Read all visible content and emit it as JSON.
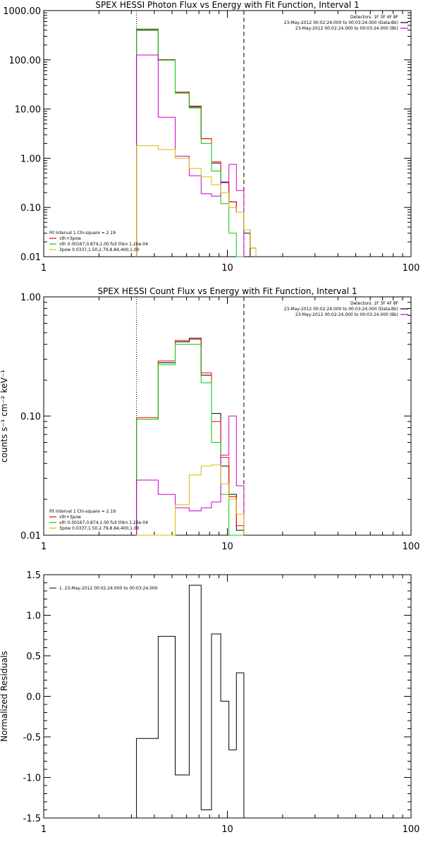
{
  "chart_data": [
    {
      "type": "line",
      "title": "SPEX HESSI Photon Flux vs Energy with Fit Function, Interval 1",
      "xlabel": "",
      "ylabel": "",
      "x_scale": "log",
      "y_scale": "log",
      "xlim": [
        1,
        100
      ],
      "ylim": [
        0.01,
        1000
      ],
      "x_ticks": [
        "1",
        "10",
        "100"
      ],
      "y_ticks": [
        "0.01",
        "0.10",
        "1.00",
        "10.00",
        "100.00",
        "1000.00"
      ],
      "legend_top": [
        "Detectors: 1F 3F 4F 8F",
        "23-May-2012 00:02:24.000 to 00:03:24.000 (Data-Bk)",
        "23-May-2012 00:02:24.000 to 00:03:24.000 (Bk)"
      ],
      "legend_top_colors": [
        "",
        "#000000",
        "#cc00cc"
      ],
      "legend_bottom": [
        "Fit Interval 1    Chi-square = 2.19",
        "vth+3pow",
        "vth 0.00167,0.874,1.00   full thkn 1.26e-04",
        "3pow 0.0337,1.50,2.79,8.84,400,1.00"
      ],
      "legend_bottom_colors": [
        "",
        "#ff0000",
        "#00cc00",
        "#ddbb00"
      ],
      "vlines": [
        {
          "x": 3.2,
          "style": "dotted"
        },
        {
          "x": 12.3,
          "style": "dashed"
        }
      ],
      "edges": [
        3.2,
        4.2,
        5.2,
        6.2,
        7.2,
        8.2,
        9.2,
        10.2,
        11.2,
        12.3,
        13.3,
        14.3
      ],
      "series": [
        {
          "color": "#000000",
          "values": [
            400,
            100,
            22,
            11,
            2.5,
            0.8,
            0.32,
            0.13,
            0.08,
            0.03,
            null
          ]
        },
        {
          "color": "#ff0000",
          "values": [
            420,
            100,
            22,
            11.5,
            2.5,
            0.85,
            0.33,
            0.13,
            0.08,
            0.035,
            0.015
          ]
        },
        {
          "color": "#00cc00",
          "values": [
            420,
            98,
            21,
            10.5,
            2.0,
            0.55,
            0.12,
            0.03,
            0.008,
            null,
            null
          ]
        },
        {
          "color": "#cc00cc",
          "values": [
            125,
            6.8,
            1.1,
            0.44,
            0.19,
            0.17,
            0.33,
            0.75,
            0.22,
            null,
            null
          ]
        },
        {
          "color": "#ddbb00",
          "values": [
            1.8,
            1.5,
            1.0,
            0.62,
            0.42,
            0.29,
            0.2,
            0.1,
            0.08,
            0.035,
            0.015
          ]
        }
      ]
    },
    {
      "type": "line",
      "title": "SPEX HESSI Count Flux vs Energy with Fit Function, Interval 1",
      "xlabel": "",
      "ylabel": "counts s⁻¹ cm⁻² keV⁻¹",
      "x_scale": "log",
      "y_scale": "log",
      "xlim": [
        1,
        100
      ],
      "ylim": [
        0.01,
        1
      ],
      "x_ticks": [
        "1",
        "10",
        "100"
      ],
      "y_ticks": [
        "0.01",
        "0.10",
        "1.00"
      ],
      "legend_top": [
        "Detectors: 1F 3F 4F 8F",
        "23-May-2012 00:02:24.000 to 00:03:24.000 (Data-Bk)",
        "23-May-2012 00:02:24.000 to 00:03:24.000 (Bk)"
      ],
      "legend_top_colors": [
        "",
        "#000000",
        "#cc00cc"
      ],
      "legend_bottom": [
        "Fit Interval 1    Chi-square = 2.19",
        "vth+3pow",
        "vth 0.00167,0.874,1.00   full thkn 1.26e-04",
        "3pow 0.0337,1.50,2.79,8.84,400,1.00"
      ],
      "legend_bottom_colors": [
        "",
        "#ff0000",
        "#00cc00",
        "#ddbb00"
      ],
      "vlines": [
        {
          "x": 3.2,
          "style": "dotted"
        },
        {
          "x": 12.3,
          "style": "dashed"
        }
      ],
      "edges": [
        3.2,
        4.2,
        5.2,
        6.2,
        7.2,
        8.2,
        9.2,
        10.2,
        11.2,
        12.3
      ],
      "series": [
        {
          "color": "#000000",
          "values": [
            0.094,
            0.28,
            0.42,
            0.45,
            0.22,
            0.105,
            0.038,
            0.022,
            0.011
          ]
        },
        {
          "color": "#ff0000",
          "values": [
            0.097,
            0.29,
            0.43,
            0.44,
            0.23,
            0.09,
            0.045,
            0.021,
            0.012
          ]
        },
        {
          "color": "#00cc00",
          "values": [
            0.094,
            0.27,
            0.4,
            0.4,
            0.19,
            0.06,
            0.022,
            0.01,
            0.008
          ]
        },
        {
          "color": "#cc00cc",
          "values": [
            0.029,
            0.022,
            0.017,
            0.016,
            0.017,
            0.019,
            0.047,
            0.1,
            0.026
          ]
        },
        {
          "color": "#ddbb00",
          "values": [
            0.0,
            0.0,
            0.018,
            0.032,
            0.038,
            0.039,
            0.027,
            0.02,
            0.015
          ]
        }
      ]
    },
    {
      "type": "line",
      "title": "",
      "xlabel": "",
      "ylabel": "Normalized Residuals",
      "x_scale": "log",
      "xlim": [
        1,
        100
      ],
      "ylim": [
        -1.5,
        1.5
      ],
      "x_ticks": [
        "1",
        "10",
        "100"
      ],
      "y_ticks": [
        "-1.5",
        "-1.0",
        "-0.5",
        "0.0",
        "0.5",
        "1.0",
        "1.5"
      ],
      "legend_top": [
        "1. 23-May-2012 00:02:24.000 to 00:03:24.000"
      ],
      "edges": [
        3.2,
        4.2,
        5.2,
        6.2,
        7.2,
        8.2,
        9.2,
        10.2,
        11.2,
        12.3
      ],
      "series": [
        {
          "color": "#000000",
          "values": [
            -0.52,
            0.74,
            -0.97,
            1.37,
            -1.4,
            0.77,
            -0.06,
            -0.66,
            0.29
          ]
        }
      ]
    }
  ]
}
